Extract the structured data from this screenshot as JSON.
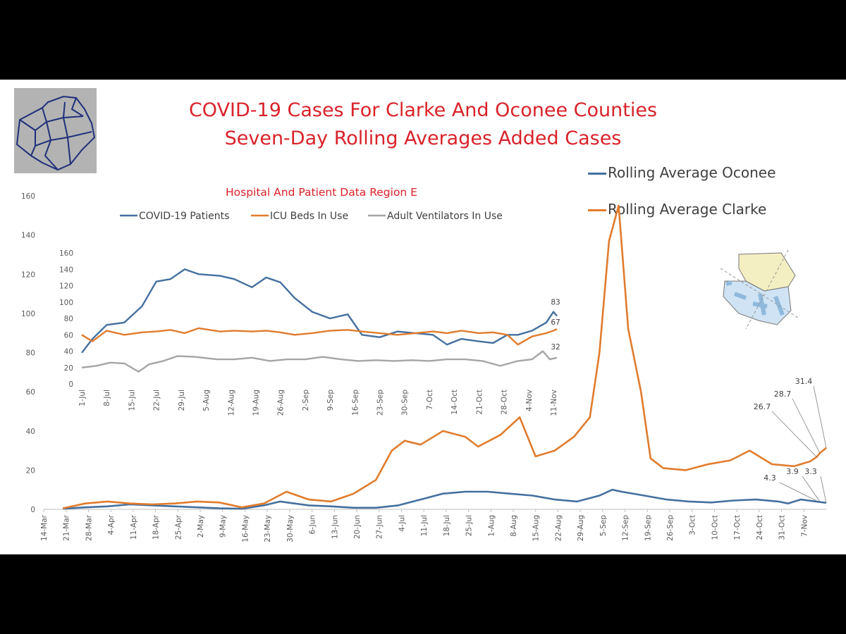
{
  "titles": {
    "line1": "COVID-19 Cases For Clarke And Oconee Counties",
    "line2": "Seven-Day Rolling Averages Added Cases"
  },
  "colors": {
    "oconee": "#44709f",
    "clarke": "#e07c2d",
    "vent": "#a5a5a5",
    "title": "#d9222a"
  },
  "chart_data": [
    {
      "type": "line",
      "title": "",
      "xlabel": "",
      "ylabel": "",
      "ylim": [
        0,
        160
      ],
      "yticks": [
        "0",
        "20",
        "40",
        "60",
        "80",
        "100",
        "120",
        "140",
        "160"
      ],
      "x_ticks": [
        "14-Mar",
        "21-Mar",
        "28-Mar",
        "4-Apr",
        "11-Apr",
        "18-Apr",
        "25-Apr",
        "2-May",
        "9-May",
        "16-May",
        "23-May",
        "30-May",
        "6-Jun",
        "13-Jun",
        "20-Jun",
        "27-Jun",
        "4-Jul",
        "11-Jul",
        "18-Jul",
        "25-Jul",
        "1-Aug",
        "8-Aug",
        "15-Aug",
        "22-Aug",
        "29-Aug",
        "5-Sep",
        "12-Sep",
        "19-Sep",
        "26-Sep",
        "3-Oct",
        "10-Oct",
        "17-Oct",
        "24-Oct",
        "31-Oct",
        "7-Nov"
      ],
      "x_range": [
        "14-Mar",
        "14-Nov"
      ],
      "legend_position": "right",
      "series": [
        {
          "name": "Rolling Average Oconee",
          "x": [
            "20-Mar",
            "27-Mar",
            "3-Apr",
            "10-Apr",
            "17-Apr",
            "24-Apr",
            "1-May",
            "8-May",
            "15-May",
            "22-May",
            "27-May",
            "5-Jun",
            "12-Jun",
            "19-Jun",
            "26-Jun",
            "3-Jul",
            "10-Jul",
            "17-Jul",
            "24-Jul",
            "31-Jul",
            "7-Aug",
            "14-Aug",
            "21-Aug",
            "28-Aug",
            "4-Sep",
            "8-Sep",
            "11-Sep",
            "18-Sep",
            "25-Sep",
            "2-Oct",
            "9-Oct",
            "16-Oct",
            "23-Oct",
            "30-Oct",
            "2-Nov",
            "6-Nov",
            "14-Nov"
          ],
          "values": [
            0.3,
            1,
            1.5,
            2.5,
            2,
            1.5,
            1,
            0.5,
            0.3,
            2,
            4,
            2,
            1.5,
            0.8,
            0.8,
            2,
            5,
            8,
            9,
            9,
            8,
            7,
            5,
            4,
            7,
            10,
            9,
            7,
            5,
            4,
            3.5,
            4.5,
            5,
            4,
            3,
            5,
            3.3
          ]
        },
        {
          "name": "Rolling Average Clarke",
          "x": [
            "20-Mar",
            "27-Mar",
            "3-Apr",
            "10-Apr",
            "17-Apr",
            "24-Apr",
            "1-May",
            "8-May",
            "15-May",
            "22-May",
            "29-May",
            "5-Jun",
            "12-Jun",
            "19-Jun",
            "26-Jun",
            "1-Jul",
            "5-Jul",
            "10-Jul",
            "17-Jul",
            "24-Jul",
            "28-Jul",
            "4-Aug",
            "10-Aug",
            "15-Aug",
            "21-Aug",
            "27-Aug",
            "1-Sep",
            "4-Sep",
            "7-Sep",
            "10-Sep",
            "13-Sep",
            "17-Sep",
            "20-Sep",
            "24-Sep",
            "1-Oct",
            "8-Oct",
            "15-Oct",
            "21-Oct",
            "28-Oct",
            "4-Nov",
            "9-Nov",
            "11-Nov",
            "12-Nov",
            "14-Nov"
          ],
          "values": [
            0.5,
            3,
            4,
            3,
            2.5,
            3,
            4,
            3.5,
            1,
            3,
            9,
            5,
            4,
            8,
            15,
            30,
            35,
            33,
            40,
            37,
            32,
            38,
            47,
            27,
            30,
            37,
            47,
            80,
            137,
            155,
            92,
            60,
            26,
            21,
            20,
            23,
            25,
            30,
            23,
            22,
            24.5,
            26.7,
            28.7,
            31.4
          ]
        }
      ],
      "annotations": [
        {
          "label": "26.7",
          "series": "Rolling Average Clarke"
        },
        {
          "label": "28.7",
          "series": "Rolling Average Clarke"
        },
        {
          "label": "31.4",
          "series": "Rolling Average Clarke"
        },
        {
          "label": "4.3",
          "series": "Rolling Average Oconee"
        },
        {
          "label": "3.9",
          "series": "Rolling Average Oconee"
        },
        {
          "label": "3.3",
          "series": "Rolling Average Oconee"
        }
      ]
    },
    {
      "type": "line",
      "title": "Hospital And Patient Data Region E",
      "xlabel": "",
      "ylabel": "",
      "ylim": [
        0,
        160
      ],
      "yticks": [
        "0",
        "20",
        "40",
        "60",
        "80",
        "100",
        "120",
        "140",
        "160"
      ],
      "x_ticks": [
        "1-Jul",
        "8-Jul",
        "15-Jul",
        "22-Jul",
        "29-Jul",
        "5-Aug",
        "12-Aug",
        "19-Aug",
        "26-Aug",
        "2-Sep",
        "9-Sep",
        "16-Sep",
        "23-Sep",
        "30-Sep",
        "7-Oct",
        "14-Oct",
        "21-Oct",
        "28-Oct",
        "4-Nov",
        "11-Nov"
      ],
      "x_range": [
        "1-Jul",
        "12-Nov"
      ],
      "legend_position": "top",
      "series": [
        {
          "name": "COVID-19 Patients",
          "x": [
            "1-Jul",
            "4-Jul",
            "8-Jul",
            "13-Jul",
            "18-Jul",
            "22-Jul",
            "26-Jul",
            "30-Jul",
            "3-Aug",
            "9-Aug",
            "13-Aug",
            "18-Aug",
            "22-Aug",
            "26-Aug",
            "30-Aug",
            "4-Sep",
            "9-Sep",
            "14-Sep",
            "18-Sep",
            "23-Sep",
            "28-Sep",
            "3-Oct",
            "8-Oct",
            "12-Oct",
            "16-Oct",
            "21-Oct",
            "25-Oct",
            "29-Oct",
            "1-Nov",
            "5-Nov",
            "9-Nov",
            "11-Nov",
            "12-Nov"
          ],
          "values": [
            38,
            55,
            72,
            75,
            95,
            125,
            128,
            140,
            134,
            132,
            128,
            118,
            130,
            124,
            105,
            88,
            80,
            85,
            60,
            57,
            64,
            62,
            60,
            48,
            55,
            52,
            50,
            60,
            60,
            65,
            75,
            88,
            83
          ]
        },
        {
          "name": "ICU Beds In Use",
          "x": [
            "1-Jul",
            "4-Jul",
            "8-Jul",
            "13-Jul",
            "18-Jul",
            "22-Jul",
            "26-Jul",
            "30-Jul",
            "3-Aug",
            "9-Aug",
            "13-Aug",
            "18-Aug",
            "22-Aug",
            "26-Aug",
            "30-Aug",
            "4-Sep",
            "9-Sep",
            "14-Sep",
            "18-Sep",
            "23-Sep",
            "28-Sep",
            "3-Oct",
            "8-Oct",
            "12-Oct",
            "16-Oct",
            "21-Oct",
            "25-Oct",
            "29-Oct",
            "1-Nov",
            "5-Nov",
            "9-Nov",
            "11-Nov",
            "12-Nov"
          ],
          "values": [
            60,
            52,
            65,
            60,
            63,
            64,
            66,
            62,
            68,
            64,
            65,
            64,
            65,
            63,
            60,
            62,
            65,
            66,
            64,
            62,
            60,
            62,
            64,
            62,
            65,
            62,
            63,
            60,
            48,
            58,
            62,
            65,
            67
          ]
        },
        {
          "name": "Adult Ventilators In Use",
          "x": [
            "1-Jul",
            "5-Jul",
            "9-Jul",
            "13-Jul",
            "17-Jul",
            "20-Jul",
            "24-Jul",
            "28-Jul",
            "2-Aug",
            "8-Aug",
            "13-Aug",
            "18-Aug",
            "23-Aug",
            "28-Aug",
            "2-Sep",
            "7-Sep",
            "12-Sep",
            "17-Sep",
            "22-Sep",
            "27-Sep",
            "2-Oct",
            "7-Oct",
            "12-Oct",
            "17-Oct",
            "22-Oct",
            "27-Oct",
            "1-Nov",
            "5-Nov",
            "8-Nov",
            "10-Nov",
            "12-Nov"
          ],
          "values": [
            20,
            22,
            26,
            25,
            15,
            24,
            28,
            34,
            33,
            30,
            30,
            32,
            28,
            30,
            30,
            33,
            30,
            28,
            29,
            28,
            29,
            28,
            30,
            30,
            28,
            22,
            28,
            30,
            40,
            30,
            32
          ]
        }
      ],
      "annotations": [
        {
          "label": "83",
          "series": "COVID-19 Patients"
        },
        {
          "label": "67",
          "series": "ICU Beds In Use"
        },
        {
          "label": "32",
          "series": "Adult Ventilators In Use"
        }
      ]
    }
  ]
}
